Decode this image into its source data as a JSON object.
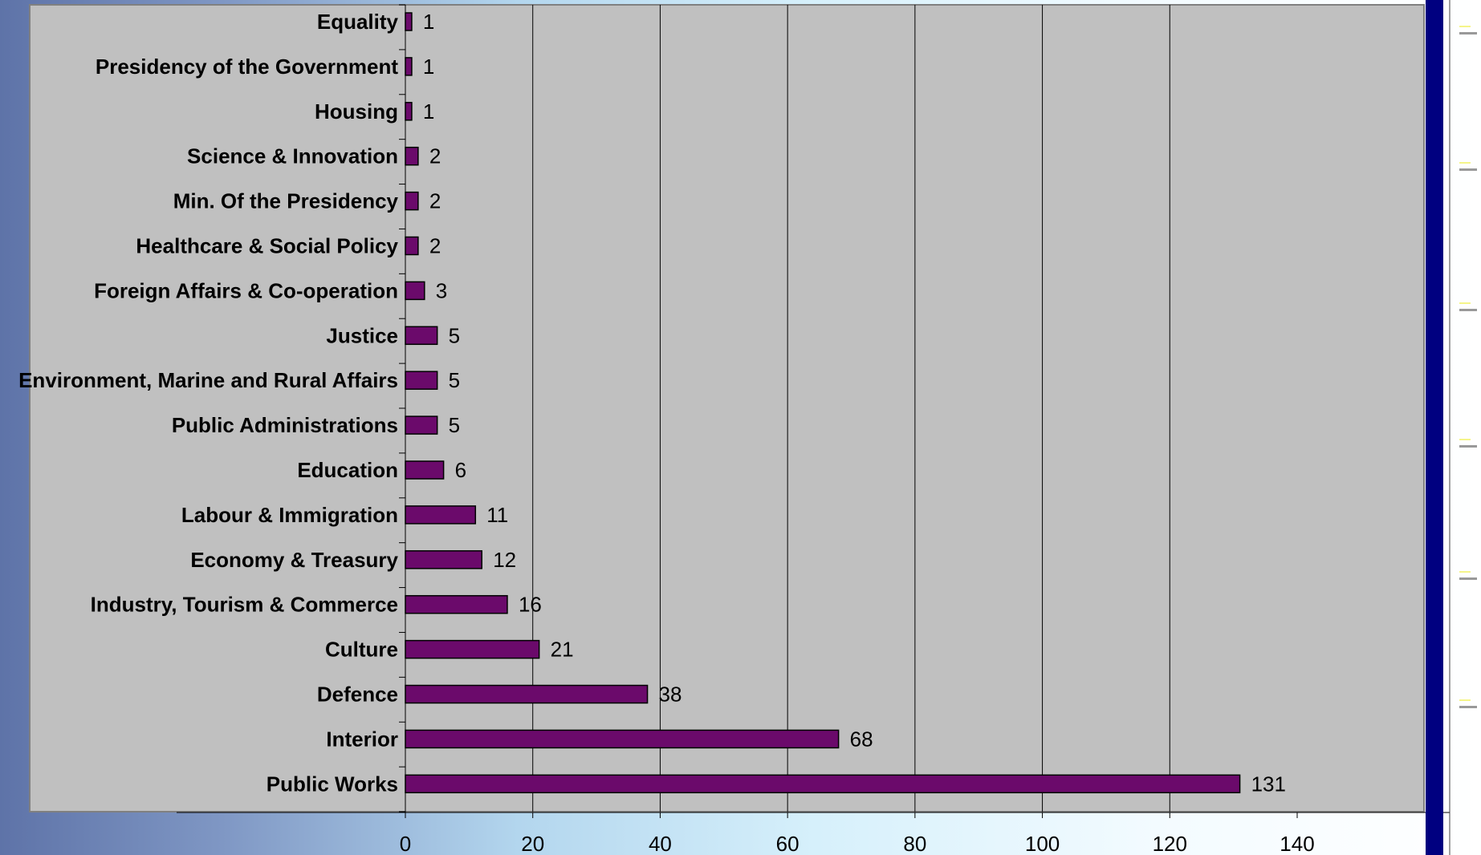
{
  "colors": {
    "plot_area": "#c0c0c0",
    "bar_fill": "#6b0a6b",
    "bar_stroke": "#000000",
    "gridline": "#000000",
    "right_band": "#000080"
  },
  "chart_data": {
    "type": "bar",
    "orientation": "horizontal",
    "title": "",
    "xlabel": "",
    "ylabel": "",
    "xlim": [
      0,
      140
    ],
    "x_ticks": [
      0,
      20,
      40,
      60,
      80,
      100,
      120,
      140
    ],
    "grid": "vertical",
    "legend": "none",
    "categories": [
      "Equality",
      "Presidency of the Government",
      "Housing",
      "Science & Innovation",
      "Min. Of the Presidency",
      "Healthcare & Social Policy",
      "Foreign Affairs & Co-operation",
      "Justice",
      "Environment, Marine and Rural Affairs",
      "Public Administrations",
      "Education",
      "Labour & Immigration",
      "Economy & Treasury",
      "Industry, Tourism & Commerce",
      "Culture",
      "Defence",
      "Interior",
      "Public Works"
    ],
    "values": [
      1,
      1,
      1,
      2,
      2,
      2,
      3,
      5,
      5,
      5,
      6,
      11,
      12,
      16,
      21,
      38,
      68,
      131
    ]
  }
}
